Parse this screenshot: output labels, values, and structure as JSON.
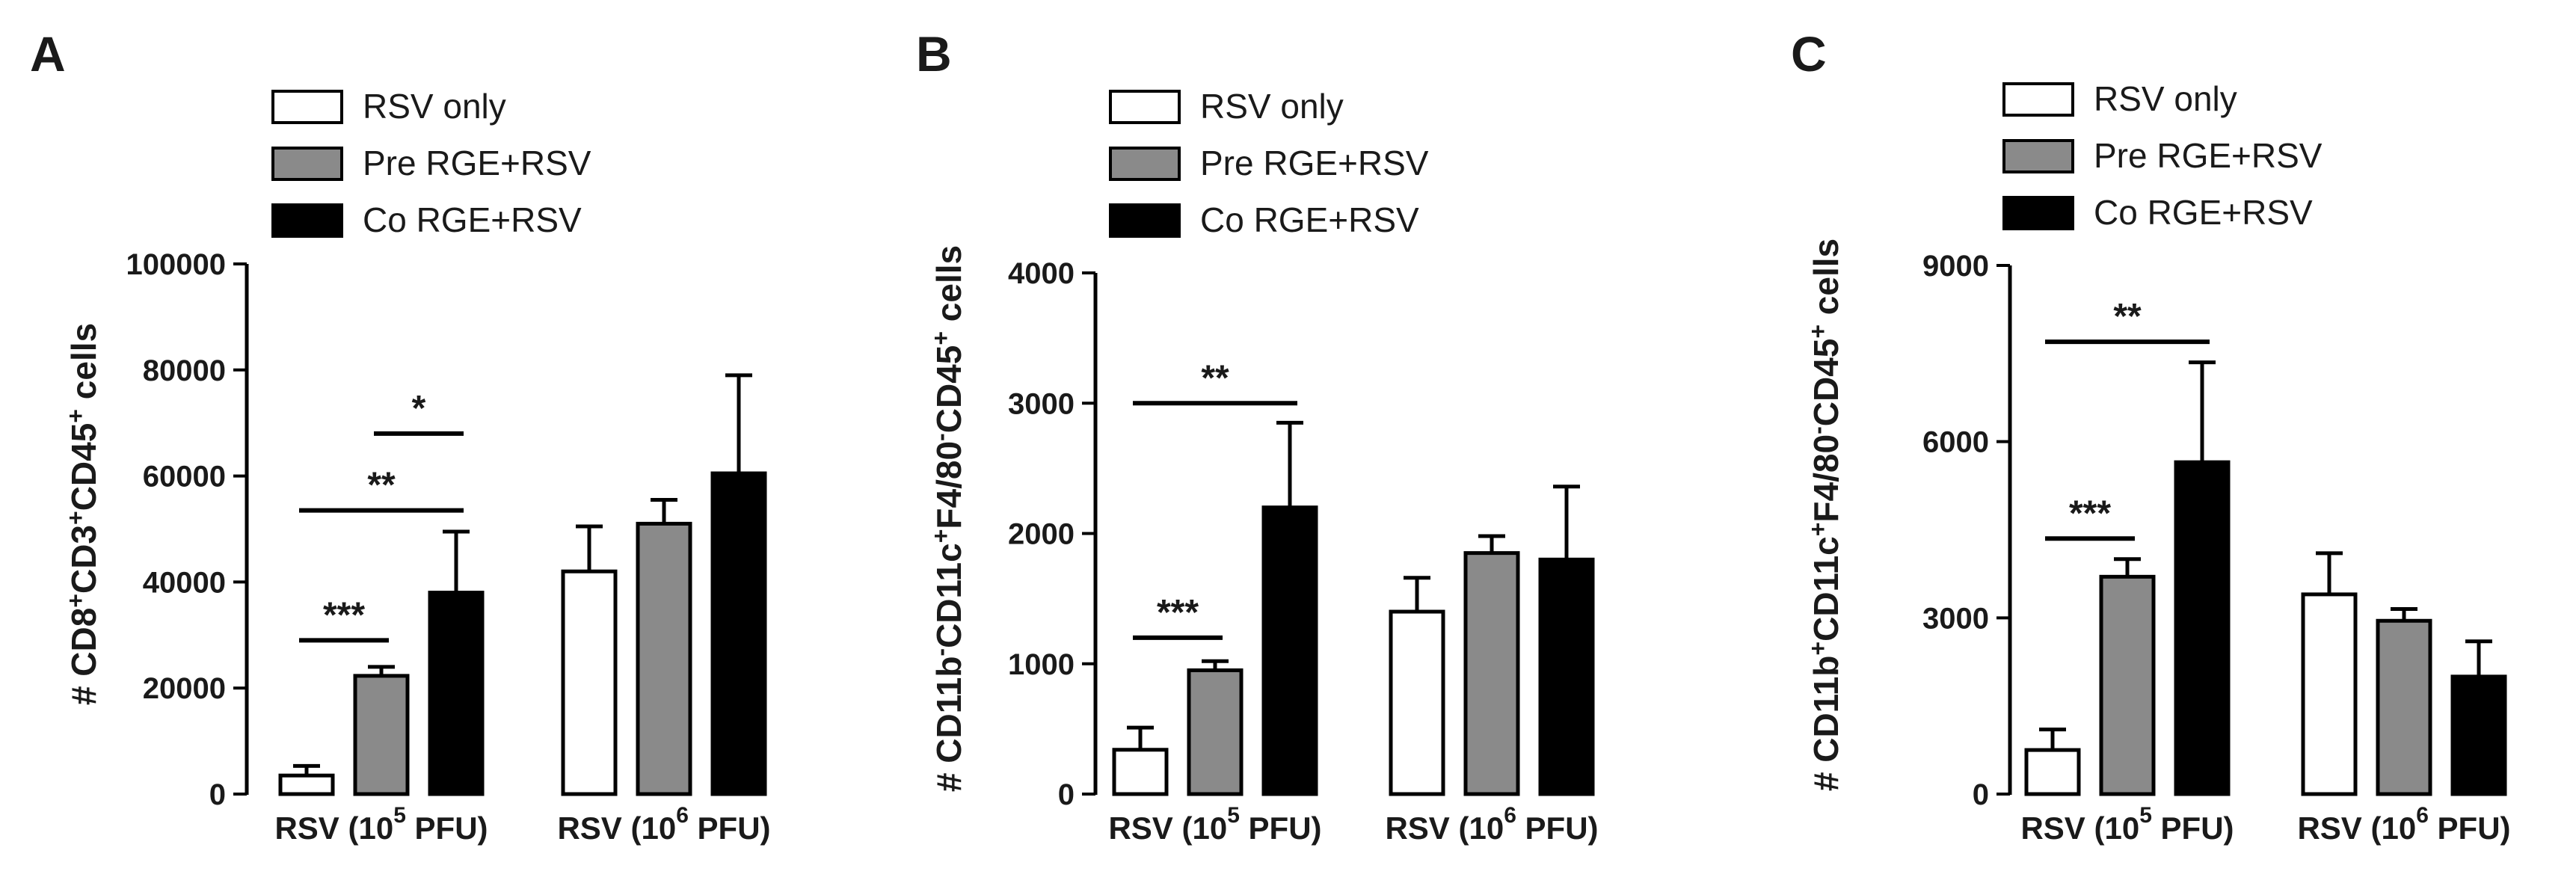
{
  "chart_data": [
    {
      "type": "bar",
      "panel": "A",
      "ylabel_parts": [
        {
          "t": "# CD8",
          "sup": false
        },
        {
          "t": "+",
          "sup": true
        },
        {
          "t": "CD3",
          "sup": false
        },
        {
          "t": "+",
          "sup": true
        },
        {
          "t": "CD45",
          "sup": false
        },
        {
          "t": "+",
          "sup": true
        },
        {
          "t": " cells",
          "sup": false
        }
      ],
      "ylim": [
        0,
        100000
      ],
      "yticks": [
        0,
        20000,
        40000,
        60000,
        80000,
        100000
      ],
      "categories": [
        {
          "pre": "RSV (10",
          "sup": "5",
          "post": " PFU)"
        },
        {
          "pre": "RSV (10",
          "sup": "6",
          "post": " PFU)"
        }
      ],
      "legend": [
        "RSV only",
        "Pre RGE+RSV",
        "Co RGE+RSV"
      ],
      "series": [
        {
          "name": "RSV only",
          "color": "#ffffff",
          "values": [
            3500,
            42000
          ],
          "errors": [
            1800,
            8500
          ]
        },
        {
          "name": "Pre RGE+RSV",
          "color": "#8a8a8a",
          "values": [
            22300,
            51000
          ],
          "errors": [
            1700,
            4500
          ]
        },
        {
          "name": "Co RGE+RSV",
          "color": "#000000",
          "values": [
            38000,
            60500
          ],
          "errors": [
            11500,
            18500
          ]
        }
      ],
      "significance": [
        {
          "from": 0,
          "to": 1,
          "label": "***",
          "y": 29000
        },
        {
          "from": 0,
          "to": 2,
          "label": "**",
          "y": 53500
        },
        {
          "from": 1,
          "to": 2,
          "label": "*",
          "y": 68000
        }
      ]
    },
    {
      "type": "bar",
      "panel": "B",
      "ylabel_parts": [
        {
          "t": "# CD11b",
          "sup": false
        },
        {
          "t": "-",
          "sup": true
        },
        {
          "t": "CD11c",
          "sup": false
        },
        {
          "t": "+",
          "sup": true
        },
        {
          "t": "F4/80",
          "sup": false
        },
        {
          "t": "-",
          "sup": true
        },
        {
          "t": "CD45",
          "sup": false
        },
        {
          "t": "+",
          "sup": true
        },
        {
          "t": " cells",
          "sup": false
        }
      ],
      "ylim": [
        0,
        4000
      ],
      "yticks": [
        0,
        1000,
        2000,
        3000,
        4000
      ],
      "categories": [
        {
          "pre": "RSV (10",
          "sup": "5",
          "post": " PFU)"
        },
        {
          "pre": "RSV (10",
          "sup": "6",
          "post": " PFU)"
        }
      ],
      "legend": [
        "RSV only",
        "Pre RGE+RSV",
        "Co RGE+RSV"
      ],
      "series": [
        {
          "name": "RSV only",
          "color": "#ffffff",
          "values": [
            340,
            1400
          ],
          "errors": [
            170,
            260
          ]
        },
        {
          "name": "Pre RGE+RSV",
          "color": "#8a8a8a",
          "values": [
            950,
            1850
          ],
          "errors": [
            70,
            130
          ]
        },
        {
          "name": "Co RGE+RSV",
          "color": "#000000",
          "values": [
            2200,
            1800
          ],
          "errors": [
            650,
            560
          ]
        }
      ],
      "significance": [
        {
          "from": 0,
          "to": 1,
          "label": "***",
          "y": 1200
        },
        {
          "from": 0,
          "to": 2,
          "label": "**",
          "y": 3000
        }
      ]
    },
    {
      "type": "bar",
      "panel": "C",
      "ylabel_parts": [
        {
          "t": "# CD11b",
          "sup": false
        },
        {
          "t": "+",
          "sup": true
        },
        {
          "t": "CD11c",
          "sup": false
        },
        {
          "t": "+",
          "sup": true
        },
        {
          "t": "F4/80",
          "sup": false
        },
        {
          "t": "-",
          "sup": true
        },
        {
          "t": "CD45",
          "sup": false
        },
        {
          "t": "+",
          "sup": true
        },
        {
          "t": " cells",
          "sup": false
        }
      ],
      "ylim": [
        0,
        9000
      ],
      "yticks": [
        0,
        3000,
        6000,
        9000
      ],
      "categories": [
        {
          "pre": "RSV (10",
          "sup": "5",
          "post": " PFU)"
        },
        {
          "pre": "RSV (10",
          "sup": "6",
          "post": " PFU)"
        }
      ],
      "legend": [
        "RSV only",
        "Pre RGE+RSV",
        "Co RGE+RSV"
      ],
      "series": [
        {
          "name": "RSV only",
          "color": "#ffffff",
          "values": [
            750,
            3400
          ],
          "errors": [
            350,
            700
          ]
        },
        {
          "name": "Pre RGE+RSV",
          "color": "#8a8a8a",
          "values": [
            3700,
            2950
          ],
          "errors": [
            300,
            200
          ]
        },
        {
          "name": "Co RGE+RSV",
          "color": "#000000",
          "values": [
            5650,
            2000
          ],
          "errors": [
            1700,
            600
          ]
        }
      ],
      "significance": [
        {
          "from": 0,
          "to": 1,
          "label": "***",
          "y": 4350
        },
        {
          "from": 0,
          "to": 2,
          "label": "**",
          "y": 7700
        }
      ]
    }
  ]
}
